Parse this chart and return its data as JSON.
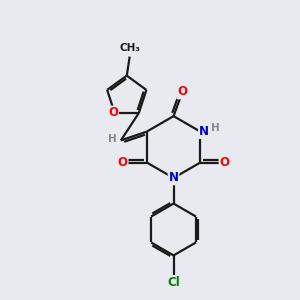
{
  "bg_color": "#e8eaf0",
  "bond_color": "#1a1a1a",
  "bond_width": 1.6,
  "atom_colors": {
    "O": "#ff0000",
    "N": "#0000cc",
    "Cl": "#008000",
    "C": "#1a1a1a",
    "H": "#888888"
  },
  "font_size": 8.5,
  "font_size_small": 7.5
}
